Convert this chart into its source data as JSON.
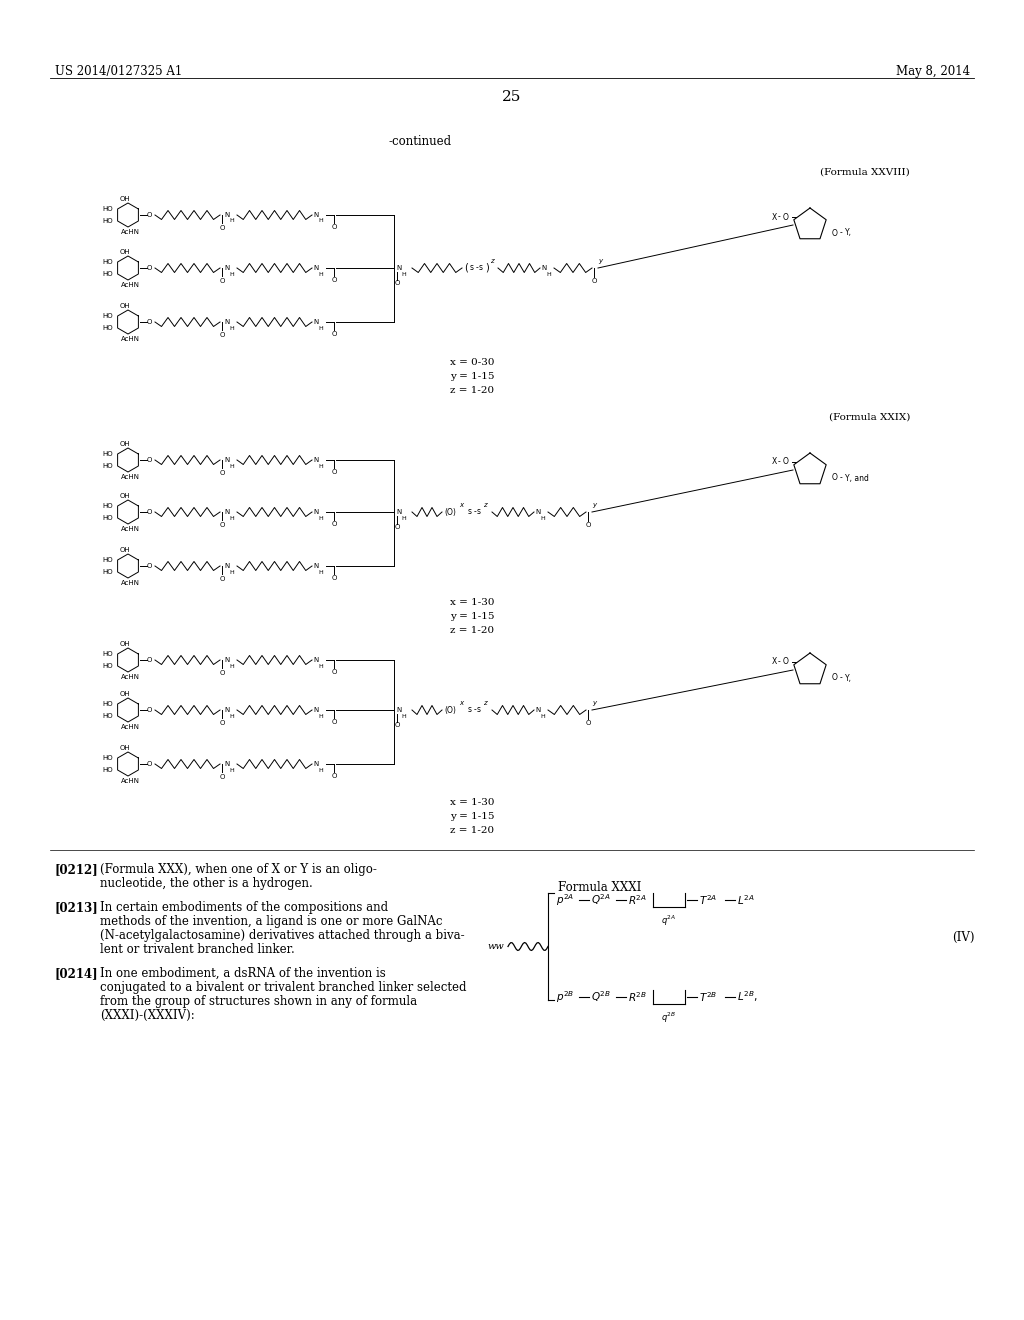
{
  "page_number": "25",
  "patent_number": "US 2014/0127325 A1",
  "patent_date": "May 8, 2014",
  "continued_label": "-continued",
  "background_color": "#ffffff",
  "text_color": "#000000",
  "formula_label_28": "(Formula XXVIII)",
  "formula_label_29": "(Formula XXIX)",
  "xyz_28": "x = 0-30\ny = 1-15\nz = 1-20",
  "xyz_29": "x = 1-30\ny = 1-15\nz = 1-20",
  "xyz_30": "x = 1-30\ny = 1-15\nz = 1-20",
  "para_0212_bold": "[0212]",
  "para_0212_text": "   (Formula XXX), when one of X or Y is an oligo-\nnucleotide, the other is a hydrogen.",
  "para_0213_bold": "[0213]",
  "para_0213_text": "   In certain embodiments of the compositions and\nmethods of the invention, a ligand is one or more GalNAc\n(N-acetylgalactosamine) derivatives attached through a biva-\nlent or trivalent branched linker.",
  "para_0214_bold": "[0214]",
  "para_0214_text": "   In one embodiment, a dsRNA of the invention is\nconjugated to a bivalent or trivalent branched linker selected\nfrom the group of structures shown in any of formula\n(XXXI)-(XXXIV):",
  "formula_xxxi_label": "Formula XXXI",
  "formula_iv_label": "(IV)"
}
